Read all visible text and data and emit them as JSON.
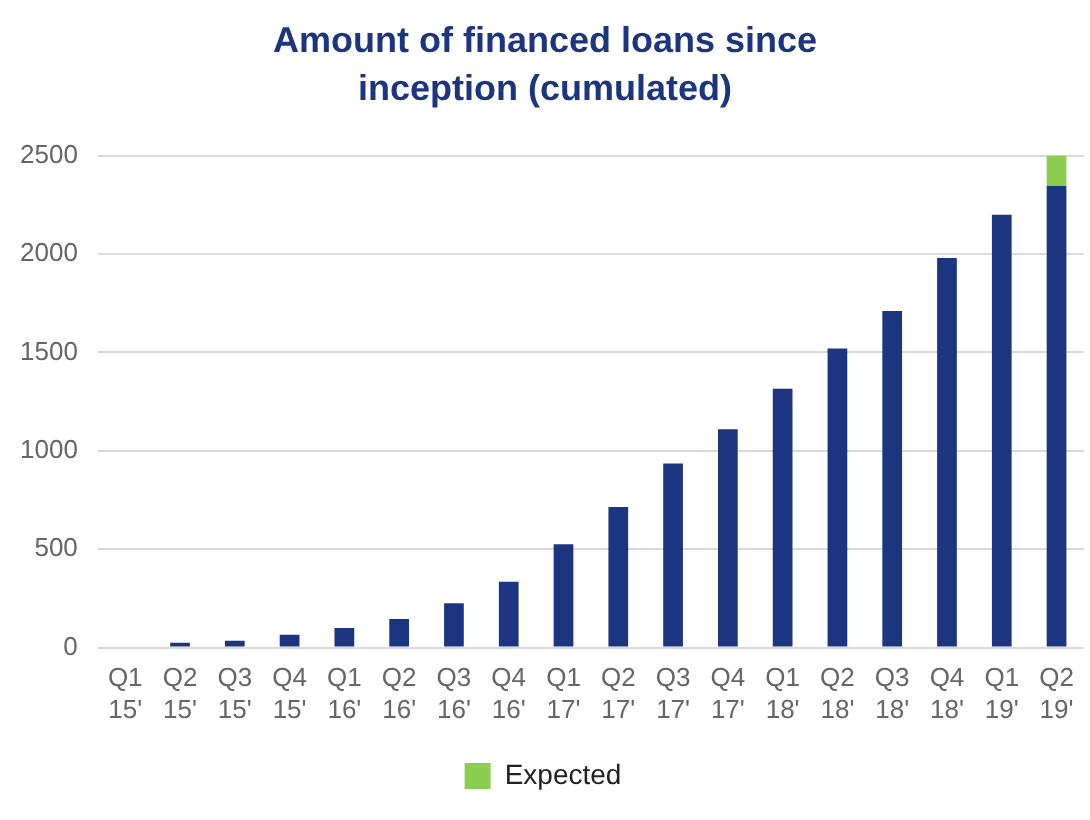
{
  "chart_data": {
    "type": "bar",
    "title": "Amount of financed loans since inception (cumulated)",
    "categories": [
      "Q1 15'",
      "Q2 15'",
      "Q3 15'",
      "Q4 15'",
      "Q1 16'",
      "Q2 16'",
      "Q3 16'",
      "Q4 16'",
      "Q1 17'",
      "Q2 17'",
      "Q3 17'",
      "Q4 17'",
      "Q1 18'",
      "Q2 18'",
      "Q3 18'",
      "Q4 18'",
      "Q1 19'",
      "Q2 19'"
    ],
    "series": [
      {
        "color": "#1c3580",
        "values": [
          0,
          25,
          35,
          65,
          100,
          145,
          225,
          335,
          525,
          715,
          935,
          1110,
          1315,
          1520,
          1710,
          1980,
          2200,
          2345
        ]
      },
      {
        "name": "Expected",
        "color": "#8ccf50",
        "values": [
          null,
          null,
          null,
          null,
          null,
          null,
          null,
          null,
          null,
          null,
          null,
          null,
          null,
          null,
          null,
          null,
          null,
          155
        ]
      }
    ],
    "stacked": true,
    "ylim": [
      0,
      2500
    ],
    "yticks": [
      0,
      500,
      1000,
      1500,
      2000,
      2500
    ],
    "grid": "y",
    "legend": "bottom"
  }
}
